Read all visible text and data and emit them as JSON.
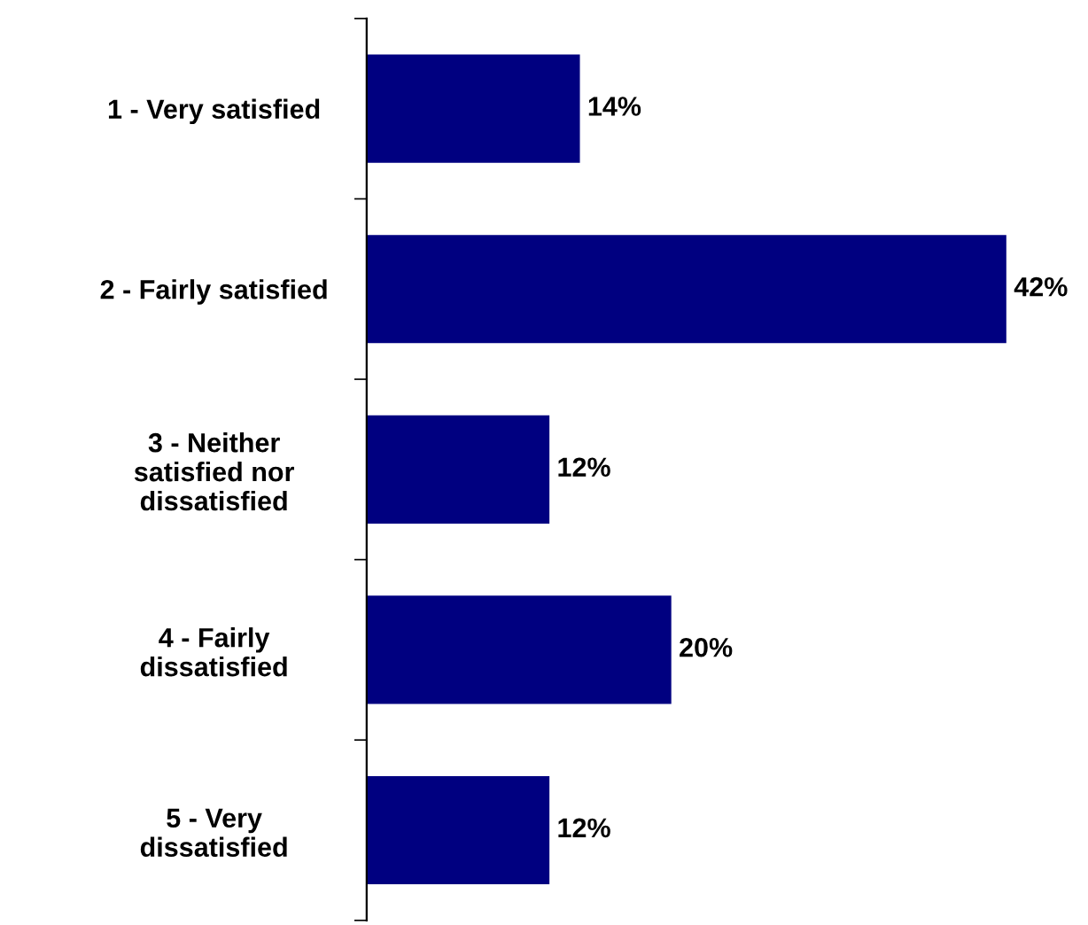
{
  "chart_data": {
    "type": "bar",
    "orientation": "horizontal",
    "categories": [
      "1 - Very satisfied",
      "2 - Fairly satisfied",
      "3 - Neither\nsatisfied nor\ndissatisfied",
      "4 - Fairly\ndissatisfied",
      "5 - Very\ndissatisfied"
    ],
    "values": [
      14,
      42,
      12,
      20,
      12
    ],
    "value_labels": [
      "14%",
      "42%",
      "12%",
      "20%",
      "12%"
    ],
    "color": "#000080",
    "grid": false,
    "legend": false
  }
}
